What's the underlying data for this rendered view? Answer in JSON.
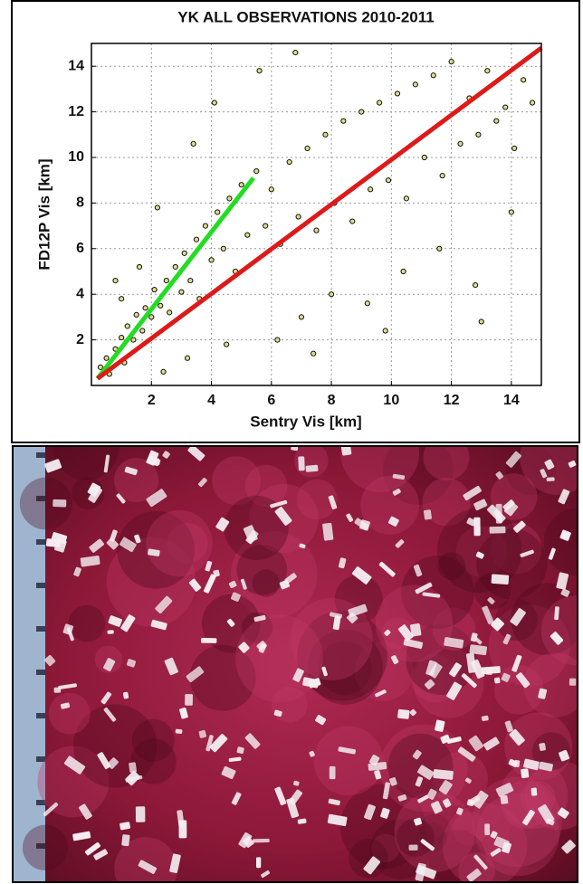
{
  "chart_data": {
    "type": "scatter",
    "title": "YK ALL OBSERVATIONS 2010-2011",
    "x_label": "Sentry Vis [km]",
    "y_label": "FD12P Vis [km]",
    "xlim": [
      0,
      15
    ],
    "ylim": [
      0,
      15
    ],
    "xticks": [
      2,
      4,
      6,
      8,
      10,
      12,
      14
    ],
    "yticks": [
      2,
      4,
      6,
      8,
      10,
      12,
      14
    ],
    "grid": true,
    "series": [
      {
        "type": "scatter",
        "color": "#e0dc8c",
        "x": [
          0.3,
          0.5,
          0.6,
          0.8,
          1.0,
          1.1,
          1.2,
          1.4,
          1.5,
          1.7,
          1.8,
          2.0,
          2.1,
          2.3,
          2.5,
          2.6,
          2.8,
          3.0,
          3.1,
          3.3,
          3.5,
          3.6,
          3.8,
          4.0,
          4.2,
          4.4,
          4.6,
          4.8,
          5.0,
          5.2,
          5.5,
          5.8,
          6.0,
          6.3,
          6.6,
          6.9,
          7.2,
          7.5,
          7.8,
          8.1,
          8.4,
          8.7,
          9.0,
          9.3,
          9.6,
          9.9,
          10.2,
          10.5,
          10.8,
          11.1,
          11.4,
          11.7,
          12.0,
          12.3,
          12.6,
          12.9,
          13.2,
          13.5,
          13.8,
          14.1,
          14.4,
          14.7,
          1.0,
          1.6,
          2.2,
          3.4,
          4.1,
          5.6,
          6.2,
          7.0,
          8.0,
          9.2,
          10.4,
          11.6,
          12.8,
          14.0,
          3.2,
          2.4,
          6.8,
          9.8,
          13.0,
          0.8,
          4.5,
          7.4
        ],
        "y": [
          0.8,
          1.2,
          0.5,
          1.6,
          2.1,
          1.0,
          2.6,
          2.0,
          3.1,
          2.4,
          3.4,
          3.0,
          4.2,
          3.5,
          4.6,
          3.2,
          5.2,
          4.1,
          5.8,
          4.6,
          6.4,
          3.8,
          7.0,
          5.5,
          7.6,
          6.0,
          8.2,
          5.0,
          8.8,
          6.6,
          9.4,
          7.0,
          8.6,
          6.2,
          9.8,
          7.4,
          10.4,
          6.8,
          11.0,
          8.0,
          11.6,
          7.2,
          12.0,
          8.6,
          12.4,
          9.0,
          12.8,
          8.2,
          13.2,
          10.0,
          13.6,
          9.2,
          14.2,
          10.6,
          12.6,
          11.0,
          13.8,
          11.6,
          12.2,
          10.4,
          13.4,
          12.4,
          3.8,
          5.2,
          7.8,
          10.6,
          12.4,
          13.8,
          2.0,
          3.0,
          4.0,
          3.6,
          5.0,
          6.0,
          4.4,
          7.6,
          1.2,
          0.6,
          14.6,
          2.4,
          2.8,
          4.6,
          1.8,
          1.4
        ]
      },
      {
        "type": "line",
        "color": "#22dd22",
        "x": [
          0.2,
          5.4
        ],
        "y": [
          0.3,
          9.1
        ]
      },
      {
        "type": "line",
        "color": "#dd1a1a",
        "x": [
          0.2,
          15
        ],
        "y": [
          0.3,
          14.8
        ]
      }
    ]
  }
}
